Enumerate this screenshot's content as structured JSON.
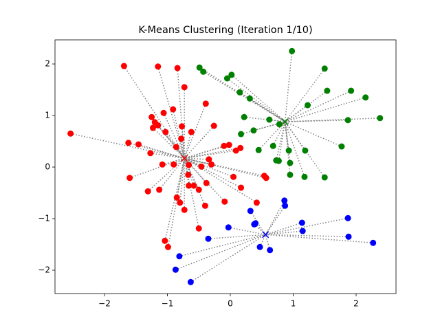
{
  "chart_data": {
    "type": "scatter",
    "title": "K-Means Clustering (Iteration 1/10)",
    "xlim": [
      -2.787,
      2.634
    ],
    "ylim": [
      -2.453,
      2.467
    ],
    "xticks": [
      {
        "value": -2,
        "label": "−2"
      },
      {
        "value": -1,
        "label": "−1"
      },
      0,
      1,
      2
    ],
    "yticks": [
      {
        "value": -2,
        "label": "−2"
      },
      {
        "value": -1,
        "label": "−1"
      },
      0,
      1,
      2
    ],
    "grid": false,
    "series": [
      {
        "color": "#ff0000",
        "centroid": {
          "x": -0.73,
          "y": 0.17
        },
        "x": [
          -2.54,
          -1.69,
          -1.15,
          -0.84,
          -0.73,
          -0.39,
          -1.25,
          -1.06,
          -0.91,
          -1.2,
          -1.15,
          -1.23,
          -1.03,
          -0.77,
          -0.62,
          -0.26,
          -1.62,
          -1.46,
          -1.27,
          -0.86,
          -0.78,
          -0.1,
          -0.02,
          0.09,
          0.16,
          -1.08,
          -0.9,
          -0.66,
          -0.46,
          -0.34,
          -0.3,
          -1.6,
          -0.67,
          0.05,
          -1.13,
          -1.31,
          -0.85,
          -0.66,
          -0.5,
          -0.38,
          0.17,
          -0.8,
          0.42,
          -0.73,
          -0.4,
          -0.09,
          -0.5,
          -1.04,
          -0.99,
          0.54,
          0.57,
          -0.58
        ],
        "values": [
          0.65,
          1.96,
          1.95,
          1.92,
          1.55,
          1.23,
          0.97,
          1.05,
          1.12,
          0.87,
          0.81,
          0.76,
          0.68,
          0.79,
          0.68,
          0.8,
          0.47,
          0.44,
          0.27,
          0.39,
          0.55,
          0.41,
          0.43,
          0.32,
          0.37,
          0.05,
          0.05,
          0.04,
          0.01,
          0.15,
          0.05,
          -0.21,
          -0.15,
          -0.19,
          -0.44,
          -0.47,
          -0.59,
          -0.36,
          -0.44,
          -0.31,
          -0.4,
          -0.69,
          -0.69,
          -0.83,
          -0.75,
          -0.67,
          -1.19,
          -1.43,
          -1.55,
          -0.17,
          -0.21,
          -0.36
        ]
      },
      {
        "color": "#008000",
        "centroid": {
          "x": 0.87,
          "y": 0.88
        },
        "x": [
          0.98,
          -0.49,
          -0.43,
          1.5,
          0.02,
          -0.05,
          0.15,
          0.31,
          1.54,
          1.92,
          2.15,
          1.23,
          0.22,
          0.62,
          0.78,
          2.38,
          1.87,
          0.37,
          0.17,
          0.68,
          0.45,
          0.93,
          1.19,
          1.77,
          0.73,
          0.77,
          0.95,
          0.95,
          1.18,
          1.5
        ],
        "values": [
          2.25,
          1.93,
          1.85,
          1.91,
          1.79,
          1.72,
          1.45,
          1.33,
          1.48,
          1.48,
          1.35,
          1.2,
          0.97,
          0.92,
          0.83,
          0.95,
          0.91,
          0.71,
          0.64,
          0.41,
          0.33,
          0.32,
          0.32,
          0.4,
          0.13,
          0.12,
          0.08,
          -0.15,
          -0.19,
          -0.2
        ]
      },
      {
        "color": "#0000ff",
        "centroid": {
          "x": 0.56,
          "y": -1.31
        },
        "x": [
          0.86,
          0.87,
          0.32,
          0.4,
          0.38,
          1.14,
          1.87,
          -0.03,
          1.15,
          1.88,
          2.27,
          -0.35,
          0.47,
          0.63,
          -0.81,
          -0.87,
          -0.63
        ],
        "values": [
          -0.65,
          -0.75,
          -0.85,
          -1.09,
          -1.11,
          -1.08,
          -0.99,
          -1.17,
          -1.24,
          -1.35,
          -1.47,
          -1.39,
          -1.55,
          -1.61,
          -1.73,
          -1.99,
          -2.23
        ]
      }
    ]
  }
}
